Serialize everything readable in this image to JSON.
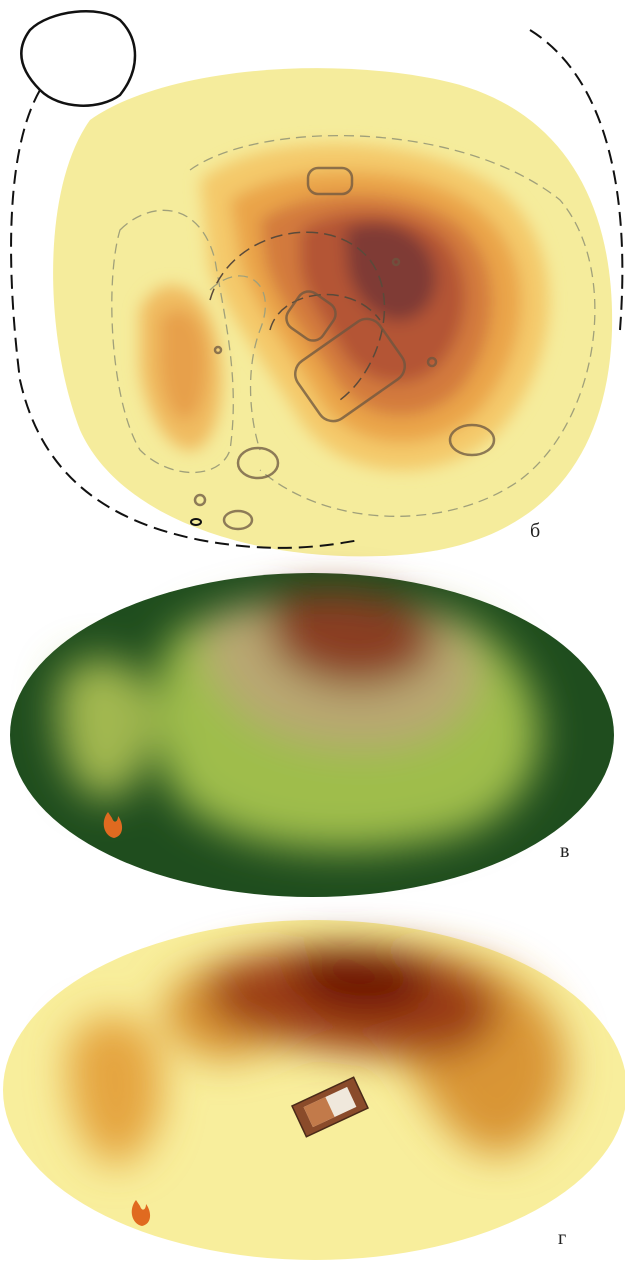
{
  "panels": [
    {
      "label": "б"
    },
    {
      "label": "в"
    },
    {
      "label": "г"
    }
  ]
}
